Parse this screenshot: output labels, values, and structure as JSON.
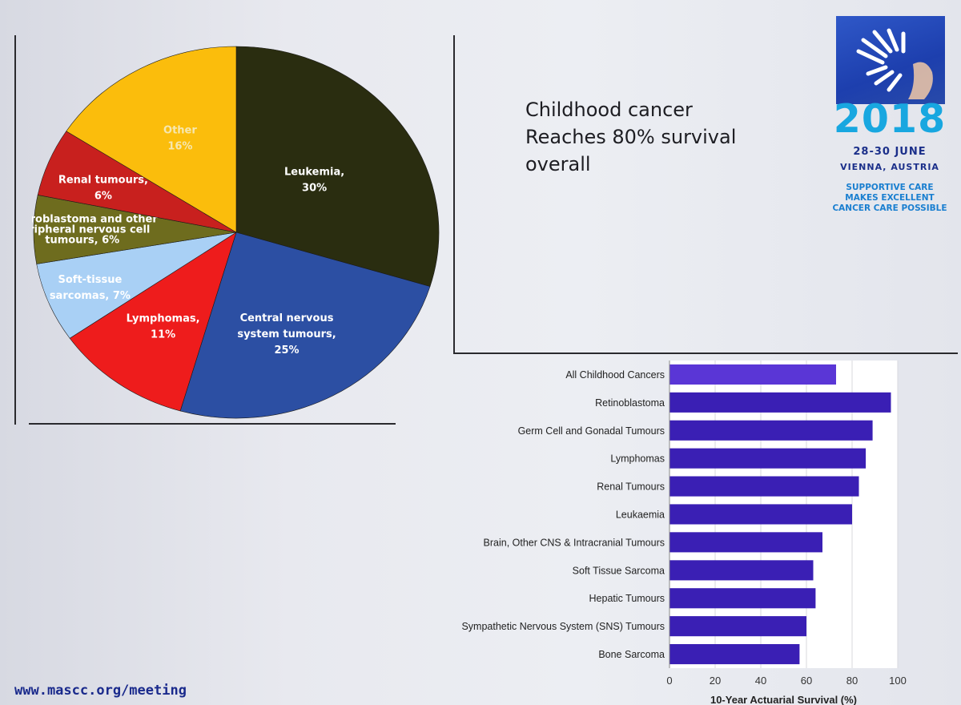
{
  "headline": {
    "lines": [
      "Childhood cancer",
      "Reaches 80% survival",
      "overall"
    ]
  },
  "logo": {
    "year": "2018",
    "dates": "28-30 JUNE",
    "city": "VIENNA, AUSTRIA",
    "tagline": [
      "SUPPORTIVE CARE",
      "MAKES EXCELLENT",
      "CANCER CARE POSSIBLE"
    ],
    "colors": {
      "mark": "#2248b8",
      "year": "#18a7e0",
      "text": "#1b2f8a",
      "tag": "#1a7fd0"
    }
  },
  "footer": {
    "url": "www.mascc.org/meeting"
  },
  "chart_data": [
    {
      "type": "pie",
      "title": "",
      "slices": [
        {
          "label": [
            "Leukemia,",
            "30%"
          ],
          "value": 30,
          "color": "#2a2d10",
          "text_color": "#ffffff"
        },
        {
          "label": [
            "Central nervous",
            "system tumours,",
            "25%"
          ],
          "value": 25,
          "color": "#2c4fa3",
          "text_color": "#ffffff"
        },
        {
          "label": [
            "Lymphomas,",
            "11%"
          ],
          "value": 11,
          "color": "#ee1c1c",
          "text_color": "#ffffff"
        },
        {
          "label": [
            "Soft-tissue",
            "sarcomas, 7%"
          ],
          "value": 7,
          "color": "#a9d0f5",
          "text_color": "#ffffff"
        },
        {
          "label": [
            "Neuroblastoma and other",
            "peripheral nervous cell",
            "tumours, 6%"
          ],
          "value": 6,
          "color": "#6e6c1e",
          "text_color": "#ffffff"
        },
        {
          "label": [
            "Renal tumours,",
            "6%"
          ],
          "value": 6,
          "color": "#c8201e",
          "text_color": "#ffffff"
        },
        {
          "label": [
            "Other",
            "16%"
          ],
          "value": 16,
          "color": "#fbbd0c",
          "text_color": "#f6e7b0"
        }
      ]
    },
    {
      "type": "bar",
      "orientation": "horizontal",
      "categories": [
        "All Childhood Cancers",
        "Retinoblastoma",
        "Germ Cell and Gonadal Tumours",
        "Lymphomas",
        "Renal Tumours",
        "Leukaemia",
        "Brain, Other CNS & Intracranial Tumours",
        "Soft Tissue Sarcoma",
        "Hepatic Tumours",
        "Sympathetic Nervous System (SNS) Tumours",
        "Bone Sarcoma"
      ],
      "values": [
        73,
        97,
        89,
        86,
        83,
        80,
        67,
        63,
        64,
        60,
        57
      ],
      "colors": [
        "#5a36d6",
        "#3a1fb4"
      ],
      "xlim": [
        0,
        100
      ],
      "xticks": [
        0,
        20,
        40,
        60,
        80,
        100
      ],
      "xlabel": "10-Year Actuarial Survival (%)",
      "grid": true
    }
  ]
}
